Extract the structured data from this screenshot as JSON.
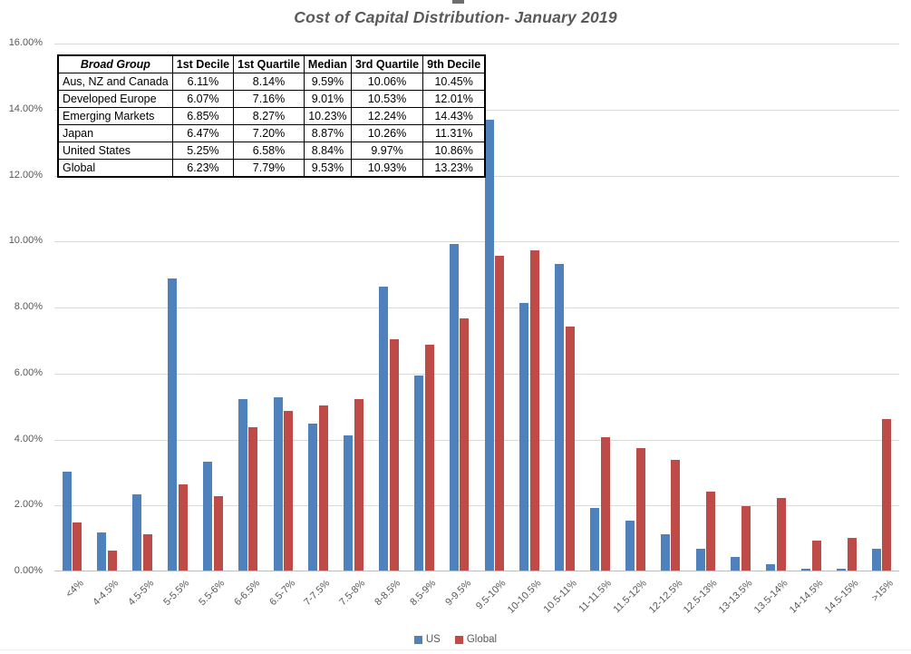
{
  "page": {
    "title": "Cost of Capital Distribution- January 2019"
  },
  "table": {
    "headers": [
      "Broad Group",
      "1st Decile",
      "1st Quartile",
      "Median",
      "3rd Quartile",
      "9th Decile"
    ],
    "rows": [
      [
        "Aus, NZ and Canada",
        "6.11%",
        "8.14%",
        "9.59%",
        "10.06%",
        "10.45%"
      ],
      [
        "Developed Europe",
        "6.07%",
        "7.16%",
        "9.01%",
        "10.53%",
        "12.01%"
      ],
      [
        "Emerging Markets",
        "6.85%",
        "8.27%",
        "10.23%",
        "12.24%",
        "14.43%"
      ],
      [
        "Japan",
        "6.47%",
        "7.20%",
        "8.87%",
        "10.26%",
        "11.31%"
      ],
      [
        "United States",
        "5.25%",
        "6.58%",
        "8.84%",
        "9.97%",
        "10.86%"
      ],
      [
        "Global",
        "6.23%",
        "7.79%",
        "9.53%",
        "10.93%",
        "13.23%"
      ]
    ]
  },
  "chart_data": {
    "type": "bar",
    "title": "Cost of Capital Distribution- January 2019",
    "categories": [
      "<4%",
      "4-4.5%",
      "4.5-5%",
      "5-5.5%",
      "5.5-6%",
      "6-6.5%",
      "6.5-7%",
      "7-7.5%",
      "7.5-8%",
      "8-8.5%",
      "8.5-9%",
      "9-9.5%",
      "9.5-10%",
      "10-10.5%",
      "10.5-11%",
      "11-11.5%",
      "11.5-12%",
      "12-12.5%",
      "12.5-13%",
      "13-13.5%",
      "13.5-14%",
      "14-14.5%",
      "14.5-15%",
      ">15%"
    ],
    "series": [
      {
        "name": "US",
        "color": "#4f81bd",
        "values": [
          3.0,
          1.15,
          2.3,
          8.85,
          3.3,
          5.2,
          5.25,
          4.45,
          4.1,
          8.6,
          5.9,
          9.9,
          13.65,
          8.1,
          9.3,
          1.9,
          1.5,
          1.1,
          0.65,
          0.4,
          0.2,
          0.05,
          0.05,
          0.65
        ]
      },
      {
        "name": "Global",
        "color": "#be4b48",
        "values": [
          1.45,
          0.6,
          1.1,
          2.6,
          2.25,
          4.35,
          4.85,
          5.0,
          5.2,
          7.0,
          6.85,
          7.65,
          9.55,
          9.7,
          7.4,
          4.05,
          3.7,
          3.35,
          2.4,
          1.95,
          2.2,
          0.9,
          1.0,
          4.6
        ]
      }
    ],
    "xlabel": "",
    "ylabel": "",
    "ylim": [
      0,
      16
    ],
    "yticks": [
      "0.00%",
      "2.00%",
      "4.00%",
      "6.00%",
      "8.00%",
      "10.00%",
      "12.00%",
      "14.00%",
      "16.00%"
    ],
    "grid": true,
    "legend_position": "bottom",
    "axis_artifact": "]"
  }
}
